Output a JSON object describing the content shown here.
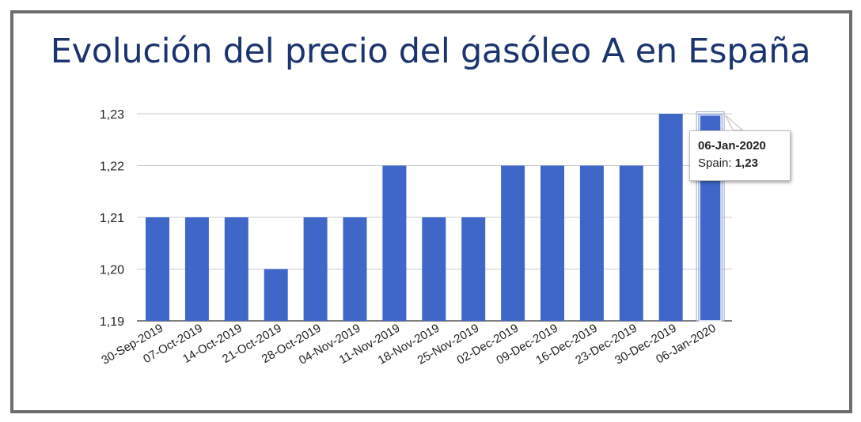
{
  "title": "Evolución del precio del gasóleo A en España",
  "colors": {
    "bar": "#3f67c9",
    "title": "#1b3470",
    "grid": "#cccccc",
    "frame": "#6d6d6d"
  },
  "chart_data": {
    "type": "bar",
    "title": "Evolución del precio del gasóleo A en España",
    "xlabel": "",
    "ylabel": "",
    "ylim": [
      1.19,
      1.23
    ],
    "yticks": [
      "1,19",
      "1,20",
      "1,21",
      "1,22",
      "1,23"
    ],
    "grid": true,
    "legend": "none",
    "categories": [
      "30-Sep-2019",
      "07-Oct-2019",
      "14-Oct-2019",
      "21-Oct-2019",
      "28-Oct-2019",
      "04-Nov-2019",
      "11-Nov-2019",
      "18-Nov-2019",
      "25-Nov-2019",
      "02-Dec-2019",
      "09-Dec-2019",
      "16-Dec-2019",
      "23-Dec-2019",
      "30-Dec-2019",
      "06-Jan-2020"
    ],
    "series": [
      {
        "name": "Spain",
        "values": [
          1.21,
          1.21,
          1.21,
          1.2,
          1.21,
          1.21,
          1.22,
          1.21,
          1.21,
          1.22,
          1.22,
          1.22,
          1.22,
          1.23,
          1.23
        ]
      }
    ],
    "highlighted_index": 14
  },
  "tooltip": {
    "date": "06-Jan-2020",
    "series_label": "Spain:",
    "value": "1,23"
  }
}
